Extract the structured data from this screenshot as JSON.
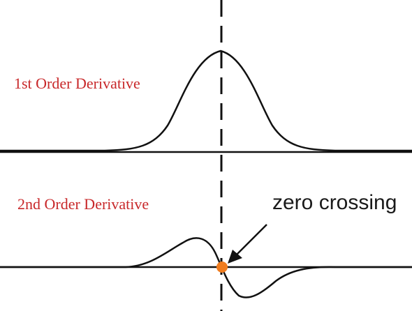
{
  "labels": {
    "first_derivative": "1st Order Derivative",
    "second_derivative": "2nd Order Derivative",
    "zero_crossing": "zero crossing"
  },
  "colors": {
    "curve": "#111111",
    "label": "#c8282a",
    "marker": "#f07c1e"
  }
}
